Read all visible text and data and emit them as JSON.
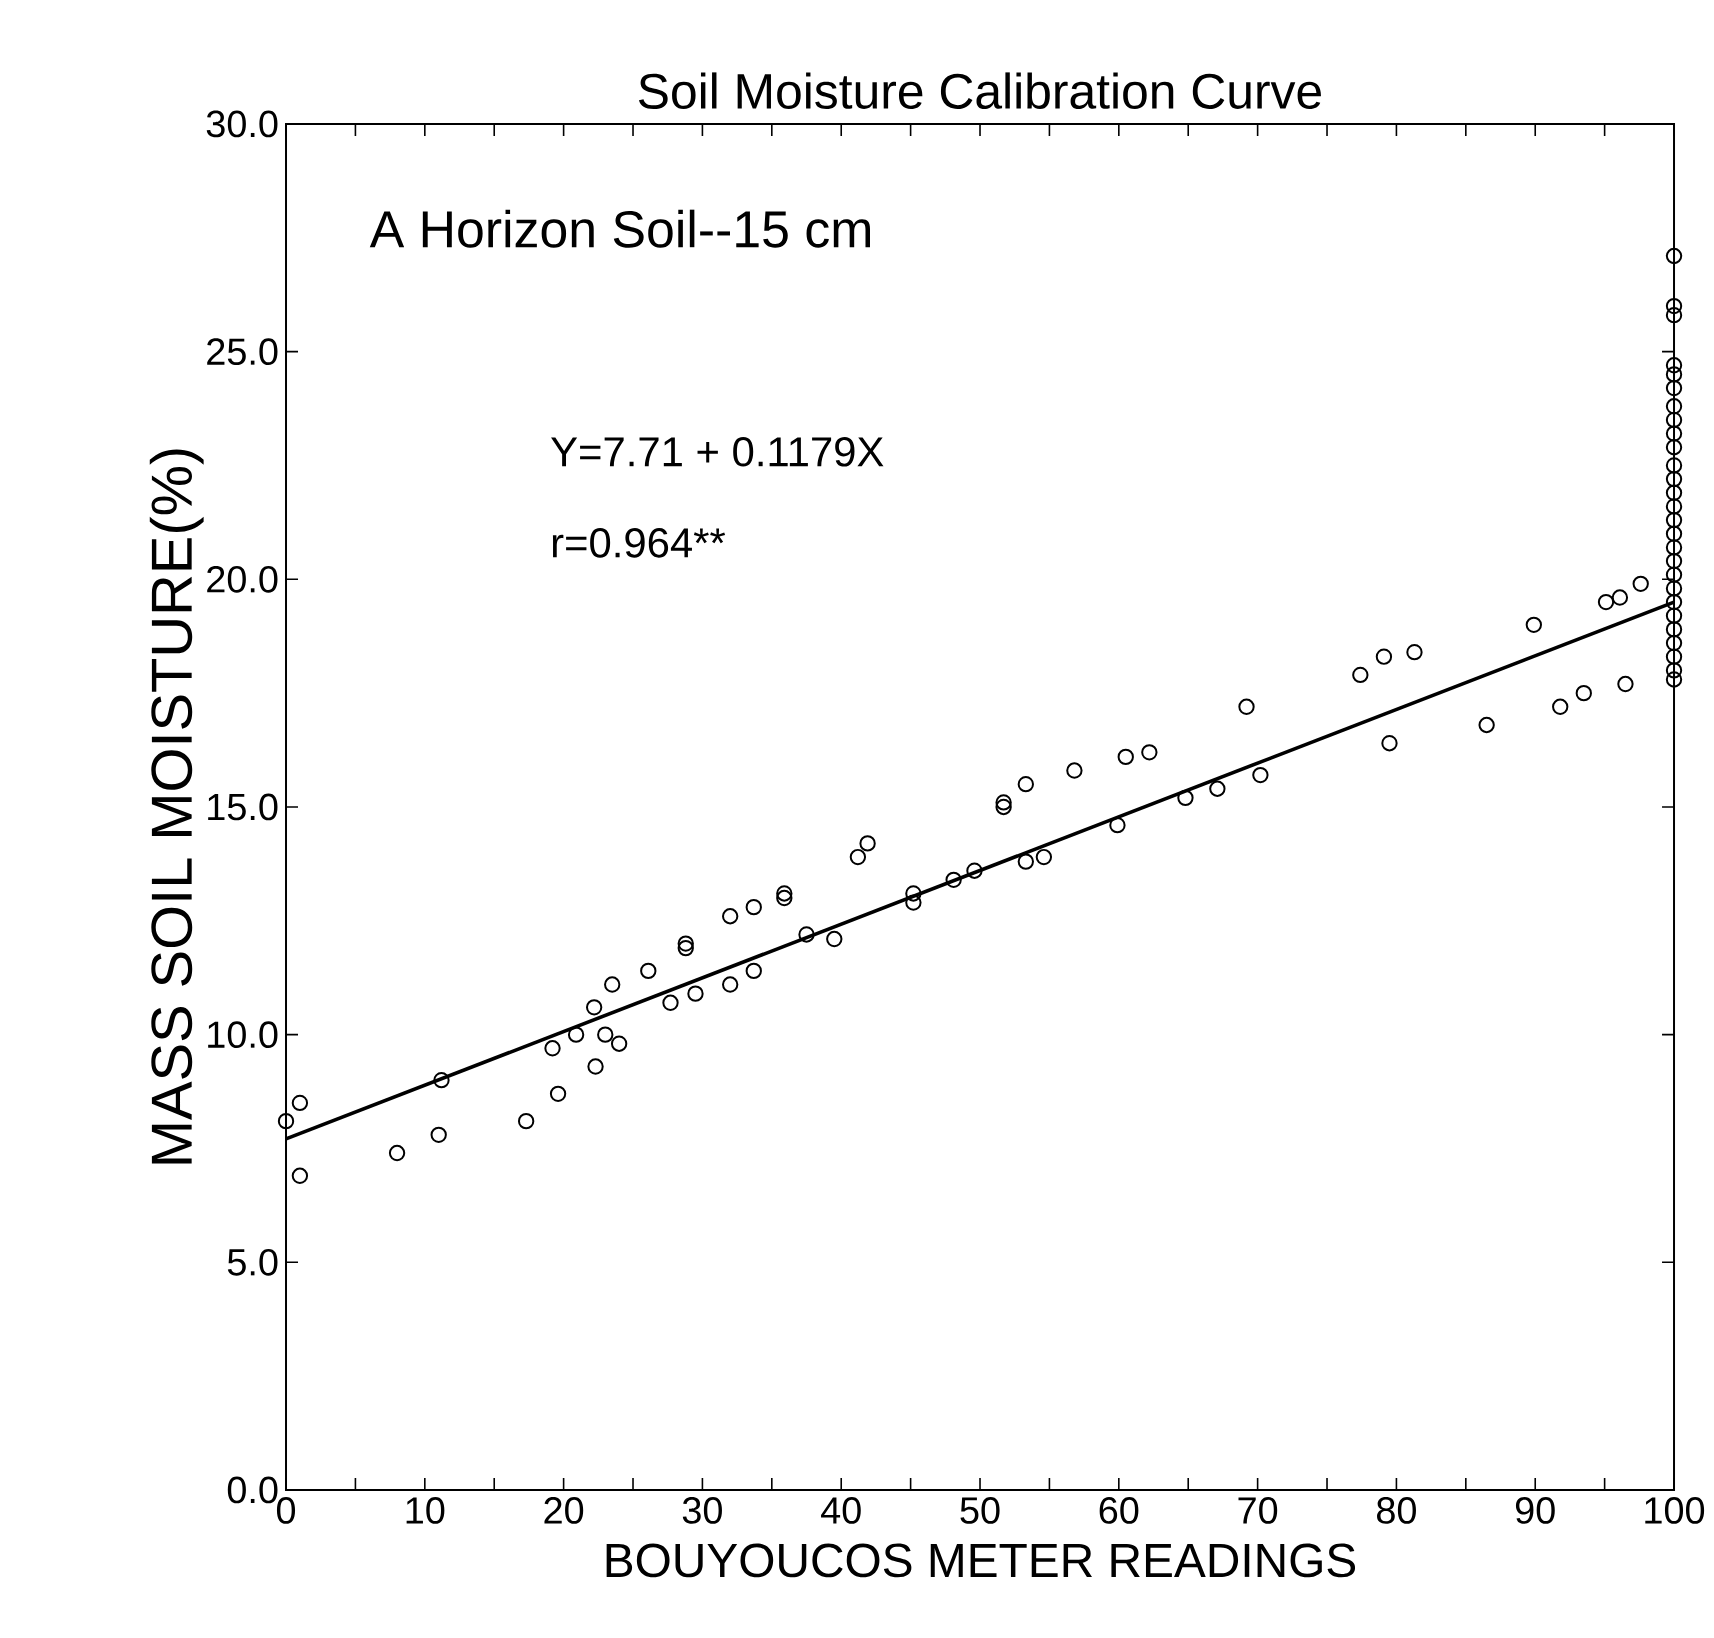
{
  "chart_data": {
    "type": "scatter",
    "title": "Soil Moisture Calibration Curve",
    "xlabel": "BOUYOUCOS METER READINGS",
    "ylabel": "MASS SOIL MOISTURE(%)",
    "annotations": [
      "A Horizon Soil--15 cm",
      "Y=7.71 + 0.1179X",
      "r=0.964**"
    ],
    "xlim": [
      0,
      100
    ],
    "ylim": [
      0,
      30
    ],
    "xticks": [
      0,
      {
        "value": 5,
        "label": null
      },
      10,
      {
        "value": 15,
        "label": null
      },
      20,
      {
        "value": 25,
        "label": null
      },
      30,
      {
        "value": 35,
        "label": null
      },
      40,
      {
        "value": 45,
        "label": null
      },
      50,
      {
        "value": 55,
        "label": null
      },
      60,
      {
        "value": 65,
        "label": null
      },
      70,
      {
        "value": 75,
        "label": null
      },
      80,
      {
        "value": 85,
        "label": null
      },
      90,
      {
        "value": 95,
        "label": null
      },
      100
    ],
    "yticks": [
      {
        "value": 0,
        "label": "0.0"
      },
      {
        "value": 5,
        "label": "5.0"
      },
      {
        "value": 10,
        "label": "10.0"
      },
      {
        "value": 15,
        "label": "15.0"
      },
      {
        "value": 20,
        "label": "20.0"
      },
      {
        "value": 25,
        "label": "25.0"
      },
      {
        "value": 30,
        "label": "30.0"
      }
    ],
    "grid": false,
    "series": [
      {
        "color": "#000000",
        "marker": "circle",
        "x": [
          0,
          1,
          1,
          8,
          11,
          11.2,
          17.3,
          19.6,
          19.2,
          20.9,
          22.2,
          22.3,
          23,
          24,
          23.5,
          26.1,
          27.7,
          28.8,
          28.8,
          29.5,
          32,
          32,
          33.7,
          33.7,
          35.9,
          35.9,
          37.5,
          39.5,
          41.2,
          41.9,
          45.2,
          45.2,
          48.1,
          49.6,
          51.7,
          51.7,
          53.3,
          53.3,
          54.6,
          56.8,
          59.9,
          60.5,
          62.2,
          64.8,
          67.1,
          69.2,
          70.2,
          77.4,
          79.1,
          81.3,
          79.5,
          86.5,
          89.9,
          91.8,
          93.5,
          96.5,
          95.1,
          96.1,
          97.6,
          100,
          100,
          100,
          100,
          100,
          100,
          100,
          100,
          100,
          100,
          100,
          100,
          100,
          100,
          100,
          100,
          100,
          100,
          100,
          100,
          100,
          100,
          100,
          100,
          100,
          100,
          100
        ],
        "values": [
          8.1,
          8.5,
          6.9,
          7.4,
          7.8,
          9.0,
          8.1,
          8.7,
          9.7,
          10.0,
          10.6,
          9.3,
          10.0,
          9.8,
          11.1,
          11.4,
          10.7,
          12.0,
          11.9,
          10.9,
          12.6,
          11.1,
          12.8,
          11.4,
          13.1,
          13.0,
          12.2,
          12.1,
          13.9,
          14.2,
          13.1,
          12.9,
          13.4,
          13.6,
          15.1,
          15.0,
          15.5,
          13.8,
          13.9,
          15.8,
          14.6,
          16.1,
          16.2,
          15.2,
          15.4,
          17.2,
          15.7,
          17.9,
          18.3,
          18.4,
          16.4,
          16.8,
          19.0,
          17.2,
          17.5,
          17.7,
          19.5,
          19.6,
          19.9,
          27.1,
          26.0,
          25.8,
          24.7,
          24.5,
          24.2,
          23.8,
          23.5,
          23.2,
          22.9,
          22.5,
          22.2,
          21.9,
          21.6,
          21.3,
          21.0,
          20.7,
          20.4,
          20.1,
          19.8,
          19.5,
          19.2,
          18.9,
          18.6,
          18.3,
          18.0,
          17.8
        ]
      },
      {
        "type": "line",
        "color": "#000000",
        "marker": "none",
        "line_style": "solid",
        "x": [
          0,
          100
        ],
        "values": [
          7.71,
          19.5
        ]
      }
    ]
  }
}
